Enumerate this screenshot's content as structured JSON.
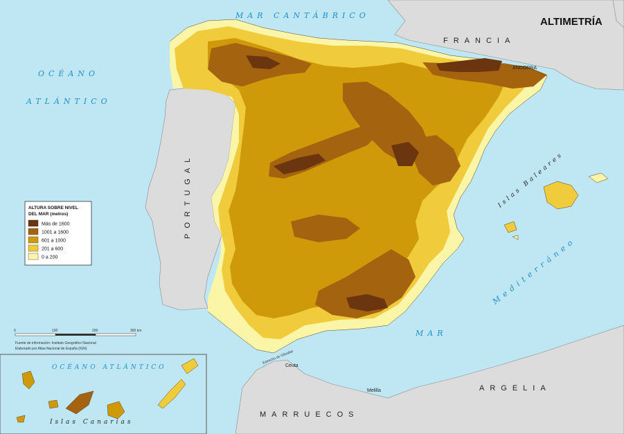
{
  "title": "ALTIMETRÍA",
  "seas": {
    "cantabrico": "MAR CANTÁBRICO",
    "oceano": "OCÉANO",
    "atlantico": "ATLÁNTICO",
    "mediterraneo": "MAR MEDITERRÁNEO",
    "mar": "MAR",
    "mediterraneo_word": "Mediterráneo",
    "inset_ocean": "OCÉANO ATLÁNTICO"
  },
  "countries": {
    "francia": "FRANCIA",
    "portugal": "PORTUGAL",
    "argelia": "ARGELIA",
    "marruecos": "MARRUECOS"
  },
  "places": {
    "andorra": "ANDORRA",
    "ceuta": "Ceuta",
    "melilla": "Melilla",
    "estrecho": "Estrecho de Gibraltar",
    "baleares": "Islas Baleares",
    "canarias": "Islas Canarias"
  },
  "legend": {
    "title_line1": "ALTURA SOBRE NIVEL",
    "title_line2": "DEL MAR (metros)",
    "items": [
      {
        "label": "Más de 1600",
        "color": "#6b3510"
      },
      {
        "label": "1001 a 1600",
        "color": "#a4630e"
      },
      {
        "label": "601 a 1000",
        "color": "#cf9a0a"
      },
      {
        "label": "201 a 600",
        "color": "#f0cc3c"
      },
      {
        "label": "0 a 200",
        "color": "#fbf5a8"
      }
    ]
  },
  "scale": {
    "ticks": [
      "0",
      "100",
      "200",
      "300 km"
    ]
  },
  "sources": {
    "line1": "Fuente de información: Instituto Geográfico Nacional",
    "line2": "Elaborado por Atlas Nacional de España (IGN)"
  },
  "colors": {
    "sea": "#bfe6f3",
    "foreign_land": "#dcdcdc",
    "sea_label": "#1d8fd0"
  }
}
